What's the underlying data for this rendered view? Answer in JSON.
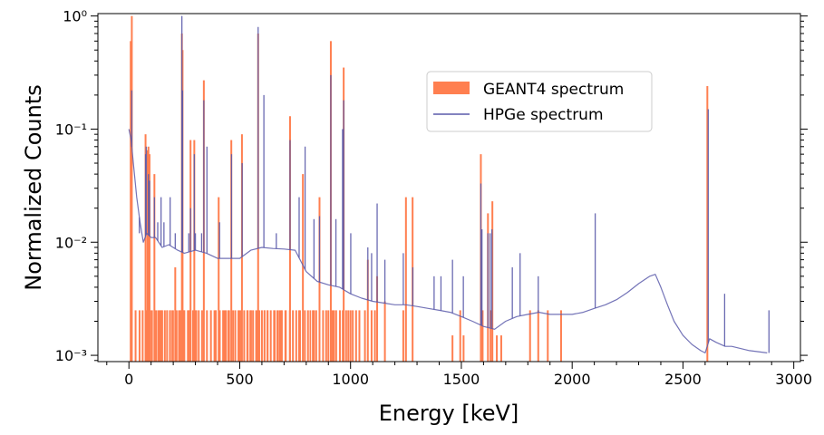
{
  "chart_data": {
    "type": "bar",
    "title": "",
    "xlabel": "Energy [keV]",
    "ylabel": "Normalized Counts",
    "xlim": [
      -140,
      3030
    ],
    "ylim": [
      0.00088,
      1.05
    ],
    "yscale": "log",
    "grid": false,
    "legend_position": "upper-center",
    "x_ticks": [
      0,
      500,
      1000,
      1500,
      2000,
      2500,
      3000
    ],
    "x_tick_labels": [
      "0",
      "500",
      "1000",
      "1500",
      "2000",
      "2500",
      "3000"
    ],
    "y_ticks": [
      0.001,
      0.01,
      0.1,
      1
    ],
    "y_tick_labels": [
      "10⁻³",
      "10⁻²",
      "10⁻¹",
      "10⁰"
    ],
    "series": [
      {
        "name": "GEANT4 spectrum",
        "kind": "histogram",
        "color": "#ff7f50",
        "floor": 0.00088,
        "lines": [
          [
            8,
            0.6
          ],
          [
            13,
            1.0
          ],
          [
            30,
            0.0025
          ],
          [
            48,
            0.0025
          ],
          [
            62,
            0.0025
          ],
          [
            75,
            0.09
          ],
          [
            78,
            0.0025
          ],
          [
            84,
            0.065
          ],
          [
            88,
            0.07
          ],
          [
            93,
            0.06
          ],
          [
            96,
            0.0025
          ],
          [
            104,
            0.0025
          ],
          [
            115,
            0.04
          ],
          [
            122,
            0.0025
          ],
          [
            132,
            0.0025
          ],
          [
            140,
            0.0025
          ],
          [
            150,
            0.0025
          ],
          [
            162,
            0.0025
          ],
          [
            172,
            0.0025
          ],
          [
            185,
            0.0025
          ],
          [
            196,
            0.0025
          ],
          [
            209,
            0.006
          ],
          [
            215,
            0.0025
          ],
          [
            226,
            0.0025
          ],
          [
            232,
            0.0025
          ],
          [
            239,
            0.7
          ],
          [
            242,
            0.5
          ],
          [
            250,
            0.0025
          ],
          [
            270,
            0.0025
          ],
          [
            278,
            0.08
          ],
          [
            295,
            0.08
          ],
          [
            300,
            0.0025
          ],
          [
            315,
            0.0025
          ],
          [
            330,
            0.0025
          ],
          [
            338,
            0.27
          ],
          [
            352,
            0.0025
          ],
          [
            370,
            0.0025
          ],
          [
            392,
            0.0025
          ],
          [
            405,
            0.025
          ],
          [
            410,
            0.0025
          ],
          [
            425,
            0.0025
          ],
          [
            438,
            0.0025
          ],
          [
            452,
            0.0025
          ],
          [
            462,
            0.08
          ],
          [
            470,
            0.0025
          ],
          [
            480,
            0.0025
          ],
          [
            502,
            0.0025
          ],
          [
            510,
            0.09
          ],
          [
            520,
            0.0025
          ],
          [
            535,
            0.0025
          ],
          [
            548,
            0.0025
          ],
          [
            560,
            0.0025
          ],
          [
            583,
            0.7
          ],
          [
            588,
            0.0025
          ],
          [
            600,
            0.0025
          ],
          [
            612,
            0.0025
          ],
          [
            625,
            0.0025
          ],
          [
            640,
            0.0025
          ],
          [
            655,
            0.0025
          ],
          [
            670,
            0.0025
          ],
          [
            690,
            0.0025
          ],
          [
            706,
            0.0025
          ],
          [
            727,
            0.13
          ],
          [
            740,
            0.0025
          ],
          [
            755,
            0.0025
          ],
          [
            768,
            0.0025
          ],
          [
            772,
            0.0025
          ],
          [
            785,
            0.04
          ],
          [
            794,
            0.0025
          ],
          [
            808,
            0.0025
          ],
          [
            830,
            0.0025
          ],
          [
            835,
            0.0025
          ],
          [
            845,
            0.0025
          ],
          [
            860,
            0.025
          ],
          [
            890,
            0.0025
          ],
          [
            900,
            0.0025
          ],
          [
            911,
            0.6
          ],
          [
            918,
            0.0025
          ],
          [
            925,
            0.0025
          ],
          [
            935,
            0.0025
          ],
          [
            952,
            0.0025
          ],
          [
            965,
            0.0025
          ],
          [
            969,
            0.35
          ],
          [
            980,
            0.0025
          ],
          [
            990,
            0.0025
          ],
          [
            1000,
            0.0025
          ],
          [
            1010,
            0.0025
          ],
          [
            1025,
            0.0025
          ],
          [
            1040,
            0.0025
          ],
          [
            1065,
            0.0025
          ],
          [
            1078,
            0.007
          ],
          [
            1095,
            0.0025
          ],
          [
            1110,
            0.0025
          ],
          [
            1120,
            0.005
          ],
          [
            1155,
            0.003
          ],
          [
            1238,
            0.0025
          ],
          [
            1250,
            0.025
          ],
          [
            1280,
            0.025
          ],
          [
            1460,
            0.0015
          ],
          [
            1495,
            0.0025
          ],
          [
            1510,
            0.0015
          ],
          [
            1588,
            0.06
          ],
          [
            1596,
            0.0025
          ],
          [
            1620,
            0.018
          ],
          [
            1632,
            0.0025
          ],
          [
            1640,
            0.023
          ],
          [
            1660,
            0.0015
          ],
          [
            1680,
            0.0015
          ],
          [
            1810,
            0.0025
          ],
          [
            1847,
            0.0025
          ],
          [
            1890,
            0.0025
          ],
          [
            1950,
            0.0025
          ],
          [
            2610,
            0.24
          ]
        ],
        "blocks": [
          [
            140,
            150,
            0.0025
          ],
          [
            170,
            175,
            0.0025
          ],
          [
            185,
            190,
            0.0025
          ],
          [
            198,
            203,
            0.0025
          ],
          [
            240,
            252,
            0.0025
          ],
          [
            262,
            275,
            0.0025
          ],
          [
            285,
            295,
            0.0025
          ],
          [
            300,
            308,
            0.0025
          ],
          [
            382,
            395,
            0.0025
          ],
          [
            428,
            435,
            0.0025
          ],
          [
            445,
            452,
            0.0025
          ],
          [
            490,
            498,
            0.0025
          ],
          [
            530,
            540,
            0.0025
          ],
          [
            548,
            555,
            0.0025
          ],
          [
            570,
            580,
            0.0025
          ],
          [
            608,
            615,
            0.0025
          ],
          [
            622,
            630,
            0.0025
          ],
          [
            655,
            662,
            0.0025
          ],
          [
            675,
            690,
            0.0025
          ],
          [
            707,
            712,
            0.0025
          ],
          [
            722,
            727,
            0.0025
          ],
          [
            815,
            822,
            0.0025
          ],
          [
            872,
            880,
            0.0025
          ]
        ]
      },
      {
        "name": "HPGe spectrum",
        "kind": "line",
        "color": "#5a5aaa",
        "x": [
          0,
          10,
          20,
          35,
          50,
          65,
          80,
          100,
          120,
          150,
          180,
          220,
          250,
          300,
          350,
          400,
          450,
          500,
          550,
          600,
          650,
          700,
          750,
          800,
          850,
          900,
          950,
          1000,
          1050,
          1100,
          1150,
          1200,
          1250,
          1300,
          1350,
          1400,
          1450,
          1500,
          1550,
          1600,
          1650,
          1700,
          1750,
          1800,
          1850,
          1900,
          1950,
          2000,
          2050,
          2100,
          2150,
          2200,
          2250,
          2300,
          2350,
          2375,
          2400,
          2430,
          2460,
          2500,
          2540,
          2580,
          2600,
          2620,
          2650,
          2690,
          2720,
          2800,
          2880
        ],
        "y": [
          0.1,
          0.08,
          0.05,
          0.025,
          0.015,
          0.01,
          0.012,
          0.011,
          0.011,
          0.009,
          0.0095,
          0.0085,
          0.008,
          0.0085,
          0.008,
          0.0072,
          0.0072,
          0.0072,
          0.0085,
          0.009,
          0.0088,
          0.0087,
          0.0085,
          0.0055,
          0.0045,
          0.0042,
          0.004,
          0.0035,
          0.0032,
          0.003,
          0.0029,
          0.0028,
          0.0028,
          0.0027,
          0.0026,
          0.0025,
          0.0024,
          0.0022,
          0.002,
          0.0018,
          0.0017,
          0.002,
          0.0022,
          0.0023,
          0.0024,
          0.0023,
          0.0023,
          0.0023,
          0.0024,
          0.0026,
          0.0028,
          0.0031,
          0.0036,
          0.0043,
          0.005,
          0.0052,
          0.004,
          0.0028,
          0.002,
          0.0015,
          0.00125,
          0.0011,
          0.00105,
          0.0014,
          0.0013,
          0.0012,
          0.0012,
          0.0011,
          0.00105
        ],
        "peaks": [
          [
            13,
            0.22
          ],
          [
            47,
            0.012
          ],
          [
            75,
            0.06
          ],
          [
            78,
            0.07
          ],
          [
            88,
            0.04
          ],
          [
            93,
            0.035
          ],
          [
            115,
            0.025
          ],
          [
            130,
            0.015
          ],
          [
            145,
            0.025
          ],
          [
            158,
            0.015
          ],
          [
            186,
            0.025
          ],
          [
            209,
            0.012
          ],
          [
            239,
            1.0
          ],
          [
            242,
            0.22
          ],
          [
            270,
            0.012
          ],
          [
            278,
            0.02
          ],
          [
            295,
            0.06
          ],
          [
            300,
            0.012
          ],
          [
            328,
            0.012
          ],
          [
            338,
            0.18
          ],
          [
            352,
            0.07
          ],
          [
            409,
            0.015
          ],
          [
            463,
            0.06
          ],
          [
            511,
            0.05
          ],
          [
            583,
            0.8
          ],
          [
            609,
            0.2
          ],
          [
            665,
            0.012
          ],
          [
            727,
            0.08
          ],
          [
            768,
            0.025
          ],
          [
            795,
            0.07
          ],
          [
            835,
            0.016
          ],
          [
            860,
            0.017
          ],
          [
            911,
            0.3
          ],
          [
            934,
            0.016
          ],
          [
            964,
            0.1
          ],
          [
            969,
            0.18
          ],
          [
            1001,
            0.012
          ],
          [
            1078,
            0.009
          ],
          [
            1095,
            0.008
          ],
          [
            1120,
            0.022
          ],
          [
            1155,
            0.007
          ],
          [
            1238,
            0.008
          ],
          [
            1281,
            0.006
          ],
          [
            1377,
            0.005
          ],
          [
            1408,
            0.005
          ],
          [
            1460,
            0.007
          ],
          [
            1509,
            0.005
          ],
          [
            1588,
            0.033
          ],
          [
            1593,
            0.013
          ],
          [
            1620,
            0.012
          ],
          [
            1630,
            0.012
          ],
          [
            1638,
            0.013
          ],
          [
            1730,
            0.006
          ],
          [
            1765,
            0.008
          ],
          [
            1847,
            0.005
          ],
          [
            2104,
            0.018
          ],
          [
            2614,
            0.15
          ],
          [
            2688,
            0.0035
          ],
          [
            2888,
            0.0025
          ]
        ]
      }
    ]
  }
}
